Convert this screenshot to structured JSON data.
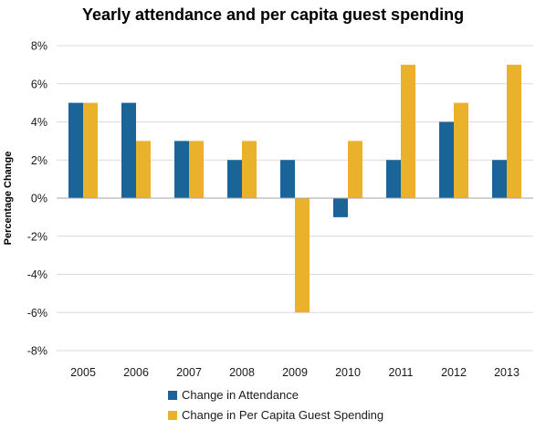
{
  "chart_data": {
    "type": "bar",
    "title": "Yearly attendance and per capita guest spending",
    "xlabel": "",
    "ylabel": "Percentage Change",
    "categories": [
      "2005",
      "2006",
      "2007",
      "2008",
      "2009",
      "2010",
      "2011",
      "2012",
      "2013"
    ],
    "series": [
      {
        "name": "Change in Attendance",
        "color": "#1b6497",
        "values": [
          5,
          5,
          3,
          2,
          2,
          -1,
          2,
          4,
          2
        ]
      },
      {
        "name": "Change in Per Capita Guest Spending",
        "color": "#e9b22a",
        "values": [
          5,
          3,
          3,
          3,
          -6,
          3,
          7,
          5,
          7
        ]
      }
    ],
    "ylim": [
      -8,
      8
    ],
    "yticks": [
      8,
      6,
      4,
      2,
      0,
      -2,
      -4,
      -6,
      -8
    ],
    "ytick_labels": [
      "8%",
      "6%",
      "4%",
      "2%",
      "0%",
      "-2%",
      "-4%",
      "-6%",
      "-8%"
    ],
    "grid": true,
    "legend_position": "bottom"
  }
}
